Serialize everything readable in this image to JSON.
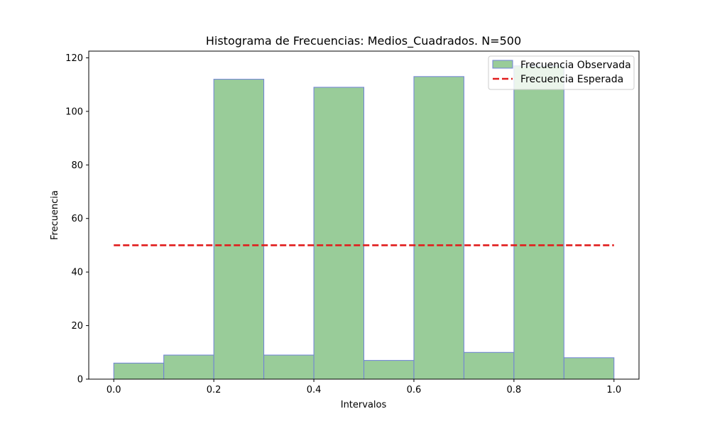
{
  "chart_data": {
    "type": "bar",
    "title": "Histograma de Frecuencias: Medios_Cuadrados. N=500",
    "xlabel": "Intervalos",
    "ylabel": "Frecuencia",
    "xlim": [
      -0.05,
      1.05
    ],
    "ylim": [
      0,
      122.5
    ],
    "xticks": [
      0.0,
      0.2,
      0.4,
      0.6,
      0.8,
      1.0
    ],
    "xtick_labels": [
      "0.0",
      "0.2",
      "0.4",
      "0.6",
      "0.8",
      "1.0"
    ],
    "yticks": [
      0,
      20,
      40,
      60,
      80,
      100,
      120
    ],
    "ytick_labels": [
      "0",
      "20",
      "40",
      "60",
      "80",
      "100",
      "120"
    ],
    "grid": false,
    "legend_position": "top-right",
    "bins": [
      {
        "start": 0.0,
        "end": 0.1,
        "value": 6
      },
      {
        "start": 0.1,
        "end": 0.2,
        "value": 9
      },
      {
        "start": 0.2,
        "end": 0.3,
        "value": 112
      },
      {
        "start": 0.3,
        "end": 0.4,
        "value": 9
      },
      {
        "start": 0.4,
        "end": 0.5,
        "value": 109
      },
      {
        "start": 0.5,
        "end": 0.6,
        "value": 7
      },
      {
        "start": 0.6,
        "end": 0.7,
        "value": 113
      },
      {
        "start": 0.7,
        "end": 0.8,
        "value": 10
      },
      {
        "start": 0.8,
        "end": 0.9,
        "value": 117
      },
      {
        "start": 0.9,
        "end": 1.0,
        "value": 8
      }
    ],
    "expected": {
      "x": [
        0.0,
        1.0
      ],
      "y": [
        50,
        50
      ]
    },
    "series": [
      {
        "name": "Frecuencia Observada",
        "color": "#99cc99",
        "edge_color": "#6f80d8"
      },
      {
        "name": "Frecuencia Esperada",
        "color": "#e11d1d"
      }
    ]
  }
}
